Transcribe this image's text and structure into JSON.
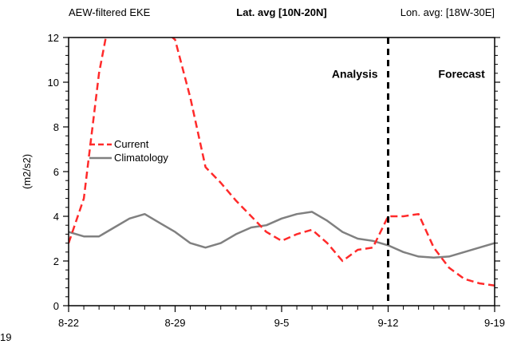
{
  "chart_data": {
    "type": "line",
    "title_left": "AEW-filtered EKE",
    "title_center": "Lat. avg [10N-20N]",
    "title_right": "Lon. avg: [18W-30E]",
    "ylabel": "(m2/s2)",
    "xlabel": "",
    "ylim": [
      0,
      12
    ],
    "xlim": [
      0,
      28
    ],
    "yticks": [
      0,
      2,
      4,
      6,
      8,
      10,
      12
    ],
    "x_ticks": [
      {
        "x": 0,
        "label": "8-22"
      },
      {
        "x": 7,
        "label": "8-29"
      },
      {
        "x": 14,
        "label": "9-5"
      },
      {
        "x": 21,
        "label": "9-12"
      },
      {
        "x": 28,
        "label": "9-19"
      }
    ],
    "left_edge_label": "19",
    "analysis_forecast_divider_x": 21,
    "annotations": [
      {
        "text": "Analysis",
        "x": 17.3,
        "y": 10.2
      },
      {
        "text": "Forecast",
        "x": 24.3,
        "y": 10.2
      }
    ],
    "legend": {
      "position": "left",
      "entries": [
        {
          "name": "Current",
          "color": "#ff2a2a",
          "dash": true
        },
        {
          "name": "Climatology",
          "color": "#808080",
          "dash": false
        }
      ]
    },
    "series": [
      {
        "name": "Current",
        "color": "#ff2a2a",
        "dashed": true,
        "x": [
          0,
          1,
          2,
          2.5,
          6.5,
          7,
          8,
          9,
          10,
          11,
          12,
          13,
          14,
          15,
          16,
          17,
          18,
          19,
          20,
          21,
          22,
          23,
          24,
          25,
          26,
          27,
          28
        ],
        "y": [
          2.8,
          4.8,
          10.4,
          12.2,
          12.2,
          11.9,
          9.3,
          6.2,
          5.5,
          4.7,
          4.0,
          3.3,
          2.9,
          3.2,
          3.4,
          2.8,
          2.0,
          2.5,
          2.6,
          4.0,
          4.0,
          4.1,
          2.6,
          1.7,
          1.2,
          1.0,
          0.9
        ]
      },
      {
        "name": "Climatology",
        "color": "#808080",
        "dashed": false,
        "x": [
          0,
          1,
          2,
          3,
          4,
          5,
          6,
          7,
          8,
          9,
          10,
          11,
          12,
          13,
          14,
          15,
          16,
          17,
          18,
          19,
          20,
          21,
          22,
          23,
          24,
          25,
          26,
          27,
          28
        ],
        "y": [
          3.3,
          3.1,
          3.1,
          3.5,
          3.9,
          4.1,
          3.7,
          3.3,
          2.8,
          2.6,
          2.8,
          3.2,
          3.5,
          3.6,
          3.9,
          4.1,
          4.2,
          3.8,
          3.3,
          3.0,
          2.9,
          2.7,
          2.4,
          2.2,
          2.15,
          2.2,
          2.4,
          2.6,
          2.8
        ]
      }
    ]
  }
}
